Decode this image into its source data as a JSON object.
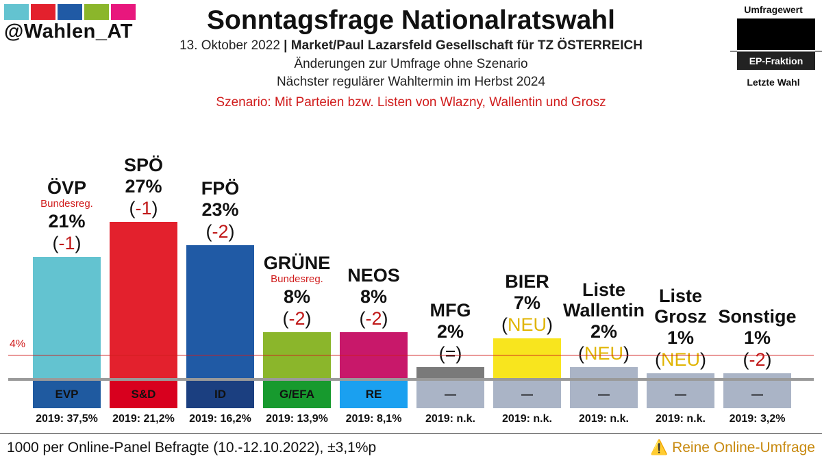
{
  "header": {
    "handle": "@Wahlen_AT",
    "title": "Sonntagsfrage Nationalratswahl",
    "date": "13. Oktober 2022",
    "separator": "|",
    "institute": "Market/Paul Lazarsfeld Gesellschaft für TZ ÖSTERREICH",
    "line2": "Änderungen zur Umfrage ohne Szenario",
    "line3": "Nächster regulärer Wahltermin im Herbst 2024",
    "scenario": "Szenario: Mit Parteien bzw. Listen von Wlazny, Wallentin und Grosz",
    "logo_colors": [
      "#63c3d0",
      "#e3212d",
      "#205aa5",
      "#8bb62b",
      "#e8177d"
    ]
  },
  "legend": {
    "top": "Umfragewert",
    "middle": "EP-Fraktion",
    "bottom": "Letzte Wahl"
  },
  "chart_data": {
    "type": "bar",
    "title": "Sonntagsfrage Nationalratswahl",
    "ylim": [
      0,
      30
    ],
    "threshold": 4,
    "threshold_label": "4%",
    "parties": [
      {
        "name": "ÖVP",
        "note": "Bundesreg.",
        "value": 21,
        "pct": "21%",
        "change": "-1",
        "change_kind": "neg",
        "ep": "EVP",
        "prev": "2019: 37,5%",
        "color": "#63c3d0",
        "ep_color": "#1f5aa0",
        "ep_text": "#111111"
      },
      {
        "name": "SPÖ",
        "note": "",
        "value": 27,
        "pct": "27%",
        "change": "-1",
        "change_kind": "neg",
        "ep": "S&D",
        "prev": "2019: 21,2%",
        "color": "#e3212d",
        "ep_color": "#d8001e",
        "ep_text": "#111111"
      },
      {
        "name": "FPÖ",
        "note": "",
        "value": 23,
        "pct": "23%",
        "change": "-2",
        "change_kind": "neg",
        "ep": "ID",
        "prev": "2019: 16,2%",
        "color": "#205aa5",
        "ep_color": "#1b3f80",
        "ep_text": "#111111"
      },
      {
        "name": "GRÜNE",
        "note": "Bundesreg.",
        "value": 8,
        "pct": "8%",
        "change": "-2",
        "change_kind": "neg",
        "ep": "G/EFA",
        "prev": "2019: 13,9%",
        "color": "#8bb62b",
        "ep_color": "#179a2e",
        "ep_text": "#111111"
      },
      {
        "name": "NEOS",
        "note": "",
        "value": 8,
        "pct": "8%",
        "change": "-2",
        "change_kind": "neg",
        "ep": "RE",
        "prev": "2019: 8,1%",
        "color": "#c8186a",
        "ep_color": "#1aa0f0",
        "ep_text": "#111111"
      },
      {
        "name": "MFG",
        "note": "",
        "value": 2,
        "pct": "2%",
        "change": "=",
        "change_kind": "eq",
        "ep": "—",
        "prev": "2019: n.k.",
        "color": "#7a7a7a",
        "ep_color": "#aab4c6",
        "ep_text": "#111111"
      },
      {
        "name": "BIER",
        "note": "",
        "value": 7,
        "pct": "7%",
        "change": "NEU",
        "change_kind": "new",
        "ep": "—",
        "prev": "2019: n.k.",
        "color": "#f8e51e",
        "ep_color": "#aab4c6",
        "ep_text": "#111111"
      },
      {
        "name": "Liste Wallentin",
        "note": "",
        "value": 2,
        "pct": "2%",
        "change": "NEU",
        "change_kind": "new",
        "ep": "—",
        "prev": "2019: n.k.",
        "color": "#aab4c6",
        "ep_color": "#aab4c6",
        "ep_text": "#111111"
      },
      {
        "name": "Liste Grosz",
        "note": "",
        "value": 1,
        "pct": "1%",
        "change": "NEU",
        "change_kind": "new",
        "ep": "—",
        "prev": "2019: n.k.",
        "color": "#aab4c6",
        "ep_color": "#aab4c6",
        "ep_text": "#111111"
      },
      {
        "name": "Sonstige",
        "note": "",
        "value": 1,
        "pct": "1%",
        "change": "-2",
        "change_kind": "neg",
        "ep": "—",
        "prev": "2019: 3,2%",
        "color": "#aab4c6",
        "ep_color": "#aab4c6",
        "ep_text": "#111111"
      }
    ]
  },
  "footer": {
    "left": "1000 per Online-Panel Befragte (10.-12.10.2022), ±3,1%p",
    "right_icon": "warning-icon",
    "right": "Reine Online-Umfrage"
  }
}
